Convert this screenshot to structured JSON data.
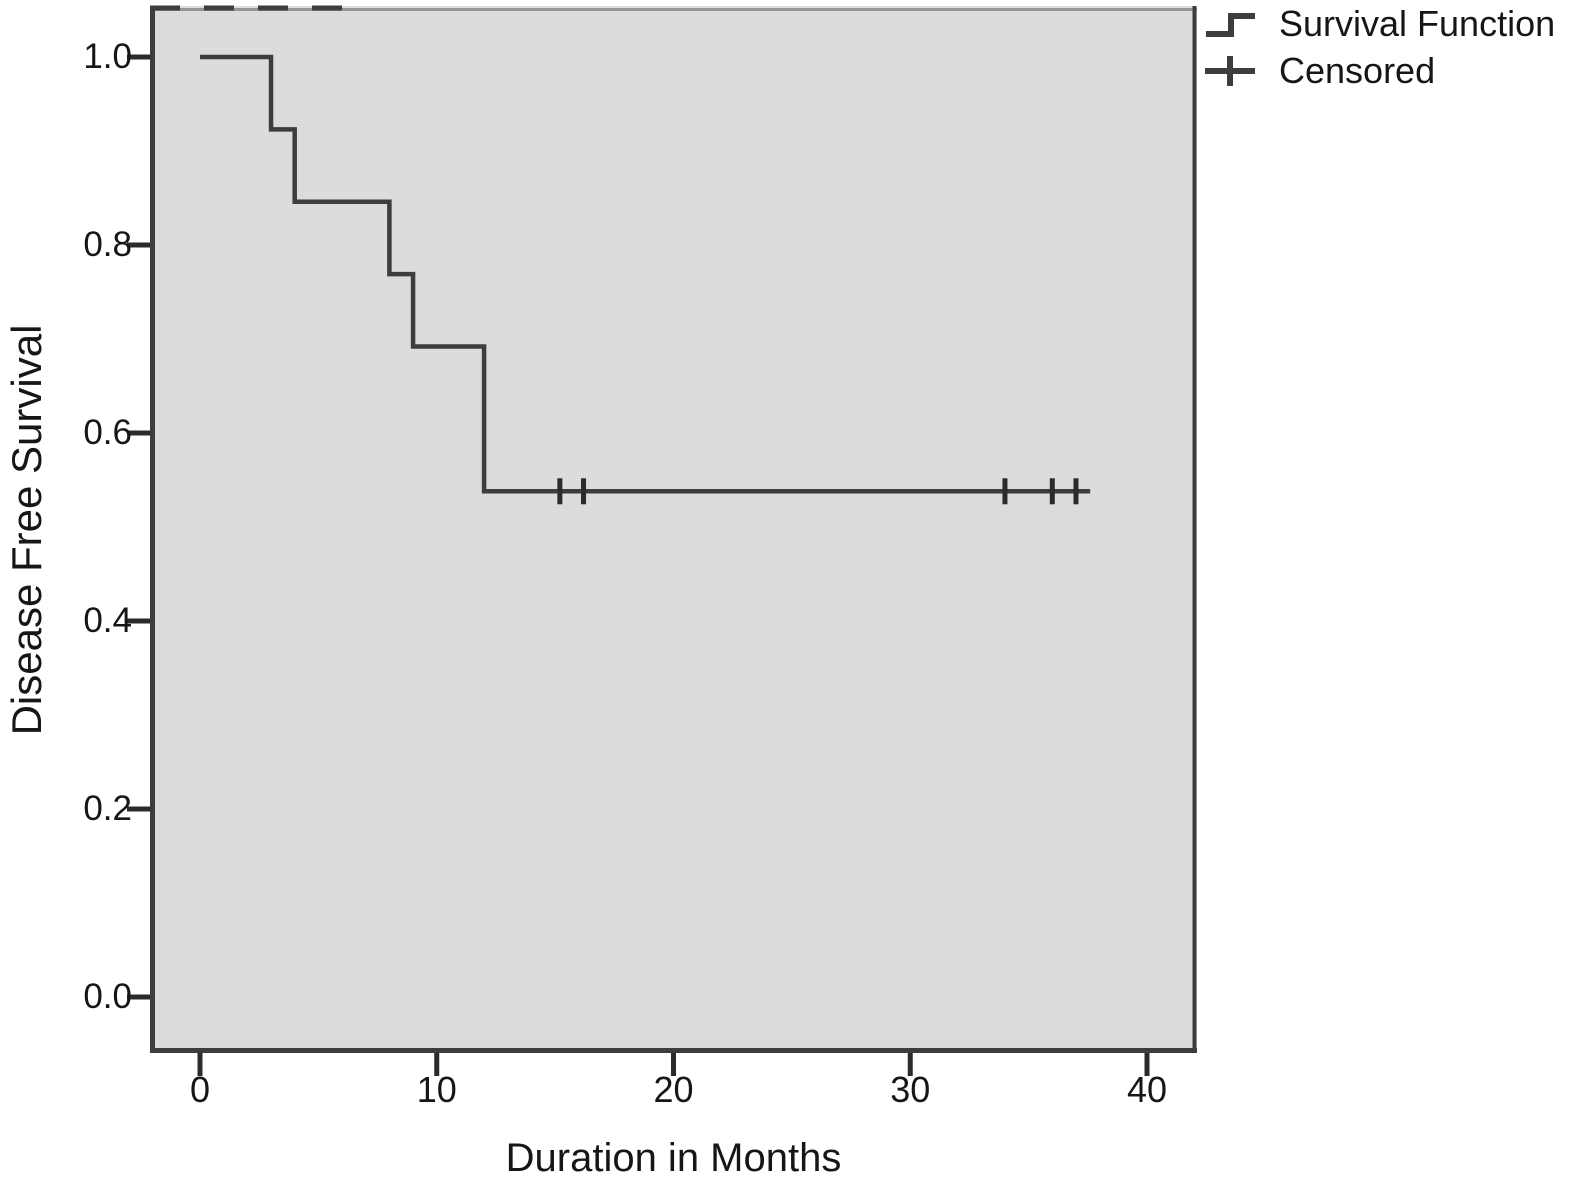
{
  "chart_data": {
    "type": "line",
    "subtype": "kaplan-meier-step",
    "title": "",
    "xlabel": "Duration in Months",
    "ylabel": "Disease Free Survival",
    "xticks": [
      0,
      10,
      20,
      30,
      40
    ],
    "yticks": [
      "0.0",
      "0.2",
      "0.4",
      "0.6",
      "0.8",
      "1.0"
    ],
    "xlim": [
      -2.1,
      42.1
    ],
    "ylim": [
      -0.057,
      1.055
    ],
    "grid": false,
    "legend_position": "top-right-outside",
    "plot_bg": "#dcdcdc",
    "line_color": "#3d3d3d",
    "tick_color": "#2b2b2b",
    "legend": [
      "Survival Function",
      "Censored"
    ],
    "legend_icons": [
      "step-line-icon",
      "plus-icon"
    ],
    "series": [
      {
        "name": "Survival Function",
        "step_points": [
          [
            0,
            1.0
          ],
          [
            3,
            1.0
          ],
          [
            3,
            0.923
          ],
          [
            4,
            0.923
          ],
          [
            4,
            0.846
          ],
          [
            8,
            0.846
          ],
          [
            8,
            0.769
          ],
          [
            9,
            0.769
          ],
          [
            9,
            0.692
          ],
          [
            12,
            0.692
          ],
          [
            12,
            0.538
          ],
          [
            37.6,
            0.538
          ]
        ]
      }
    ],
    "censored": {
      "name": "Censored",
      "points": [
        [
          15.2,
          0.538
        ],
        [
          16.2,
          0.538
        ],
        [
          34.0,
          0.538
        ],
        [
          36.0,
          0.538
        ],
        [
          37.0,
          0.538
        ]
      ]
    }
  }
}
